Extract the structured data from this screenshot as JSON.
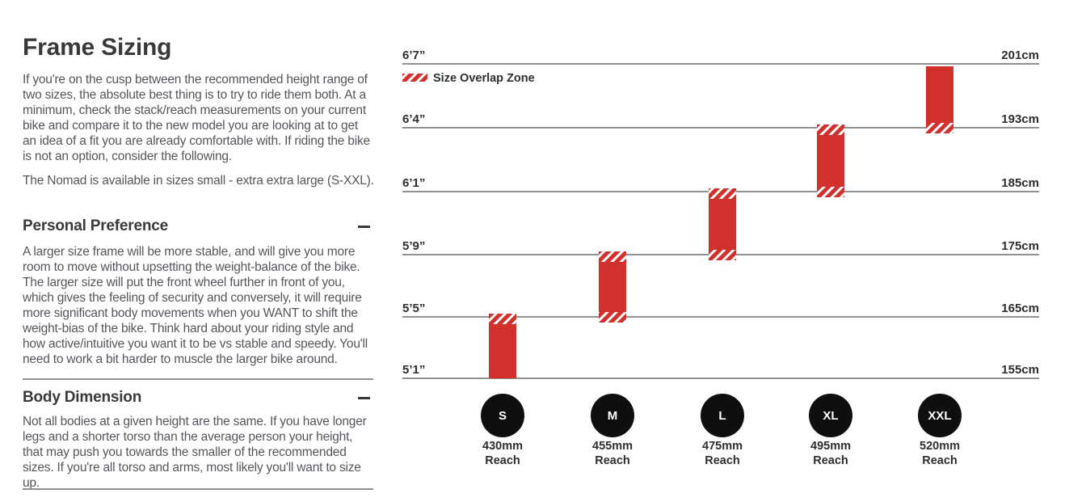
{
  "left_panel": {
    "title": "Frame Sizing",
    "intro": "If you're on the cusp between the recommended height range of two sizes, the absolute best thing is to try to ride them both. At a minimum, check the stack/reach measurements on your current bike and compare it to the new model you are looking at to get an idea of a fit you are already comfortable with. If riding the bike is not an option, consider the following.",
    "availability": "The Nomad is available in sizes small - extra extra large (S-XXL).",
    "sections": [
      {
        "heading": "Personal Preference",
        "collapse_icon": "minus",
        "body": "A larger size frame will be more stable, and will give you more room to move without upsetting the weight-balance of the bike. The larger size will put the front wheel further in front of you, which gives the feeling of security and conversely, it will require more significant body movements when you WANT to shift the weight-bias of the bike. Think hard about your riding style and how active/intuitive you want it to be vs stable and speedy. You'll need to work a bit harder to muscle the larger bike around."
      },
      {
        "heading": "Body Dimension",
        "collapse_icon": "minus",
        "body": "Not all bodies at a given height are the same. If you have longer legs and a shorter torso than the average person your height, that may push you towards the smaller of the recommended sizes. If you're all torso and arms, most likely you'll want to size up."
      }
    ]
  },
  "chart_data": {
    "type": "bar",
    "subtype": "vertical-range-bars",
    "title": "",
    "legend": {
      "label": "Size Overlap Zone",
      "position": "top-left",
      "swatch": "red-diagonal-hatch"
    },
    "reach_caption": "Reach",
    "axis": {
      "left_unit": "feet-inches",
      "right_unit": "centimeters",
      "grid": true,
      "lines": [
        {
          "imperial": "6’7”",
          "metric": "201cm",
          "cm": 201
        },
        {
          "imperial": "6’4”",
          "metric": "193cm",
          "cm": 193
        },
        {
          "imperial": "6’1”",
          "metric": "185cm",
          "cm": 185
        },
        {
          "imperial": "5’9”",
          "metric": "175cm",
          "cm": 175
        },
        {
          "imperial": "5’5”",
          "metric": "165cm",
          "cm": 165
        },
        {
          "imperial": "5’1”",
          "metric": "155cm",
          "cm": 155
        }
      ]
    },
    "series": [
      {
        "name": "S",
        "reach": "430mm",
        "range_cm": [
          155,
          165
        ],
        "top_line": 4,
        "bottom_line": 5,
        "hatch_top": true,
        "hatch_bottom": false
      },
      {
        "name": "M",
        "reach": "455mm",
        "range_cm": [
          165,
          175
        ],
        "top_line": 3,
        "bottom_line": 4,
        "hatch_top": true,
        "hatch_bottom": true
      },
      {
        "name": "L",
        "reach": "475mm",
        "range_cm": [
          175,
          185
        ],
        "top_line": 2,
        "bottom_line": 3,
        "hatch_top": true,
        "hatch_bottom": true
      },
      {
        "name": "XL",
        "reach": "495mm",
        "range_cm": [
          185,
          193
        ],
        "top_line": 1,
        "bottom_line": 2,
        "hatch_top": true,
        "hatch_bottom": true
      },
      {
        "name": "XXL",
        "reach": "520mm",
        "range_cm": [
          193,
          201
        ],
        "top_line": 0,
        "bottom_line": 1,
        "hatch_top": false,
        "hatch_bottom": true
      }
    ],
    "colors": {
      "bar": "#d2302c",
      "circle": "#0f0f10",
      "grid": "#4d4f51",
      "text": "#2d2e30"
    }
  }
}
